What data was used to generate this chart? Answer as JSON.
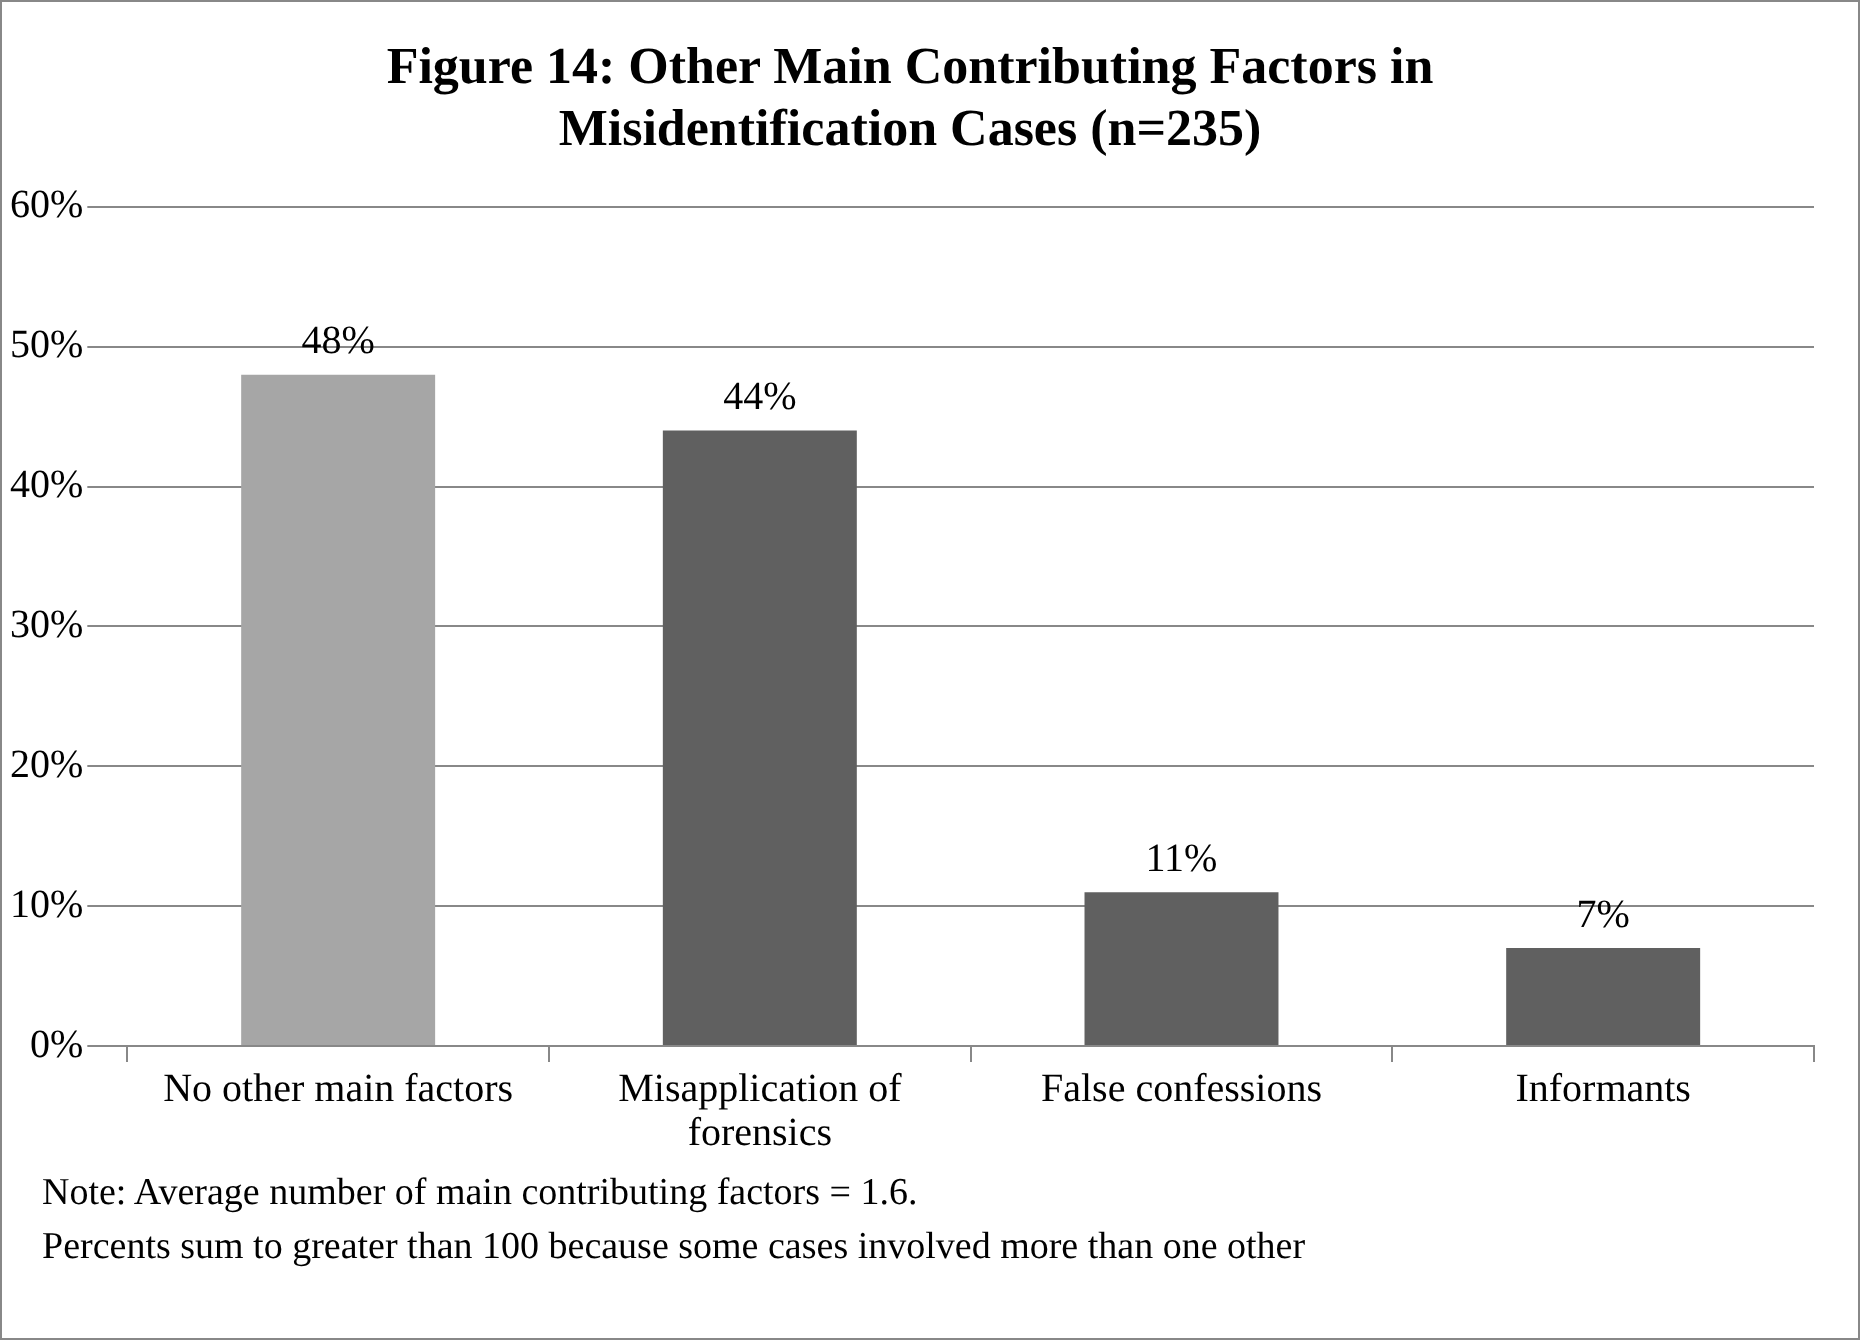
{
  "chart_data": {
    "type": "bar",
    "title": "Figure 14: Other Main Contributing Factors in Misidentification Cases (n=235)",
    "categories": [
      "No other main factors",
      "Misapplication of forensics",
      "False confessions",
      "Informants"
    ],
    "values": [
      48,
      44,
      11,
      7
    ],
    "colors": [
      "#a6a6a6",
      "#606060",
      "#606060",
      "#606060"
    ],
    "ylim": [
      0,
      60
    ],
    "yticks": [
      {
        "value": 0,
        "label": "0%"
      },
      {
        "value": 10,
        "label": "10%"
      },
      {
        "value": 20,
        "label": "20%"
      },
      {
        "value": 30,
        "label": "30%"
      },
      {
        "value": 40,
        "label": "40%"
      },
      {
        "value": 50,
        "label": "50%"
      },
      {
        "value": 60,
        "label": "60%"
      }
    ],
    "grid": "y",
    "value_labels": [
      "48%",
      "44%",
      "11%",
      "7%"
    ],
    "annotations": [
      "Note: Average number of main contributing factors = 1.6.",
      "Percents sum to greater than 100 because some cases involved more than one other"
    ]
  }
}
